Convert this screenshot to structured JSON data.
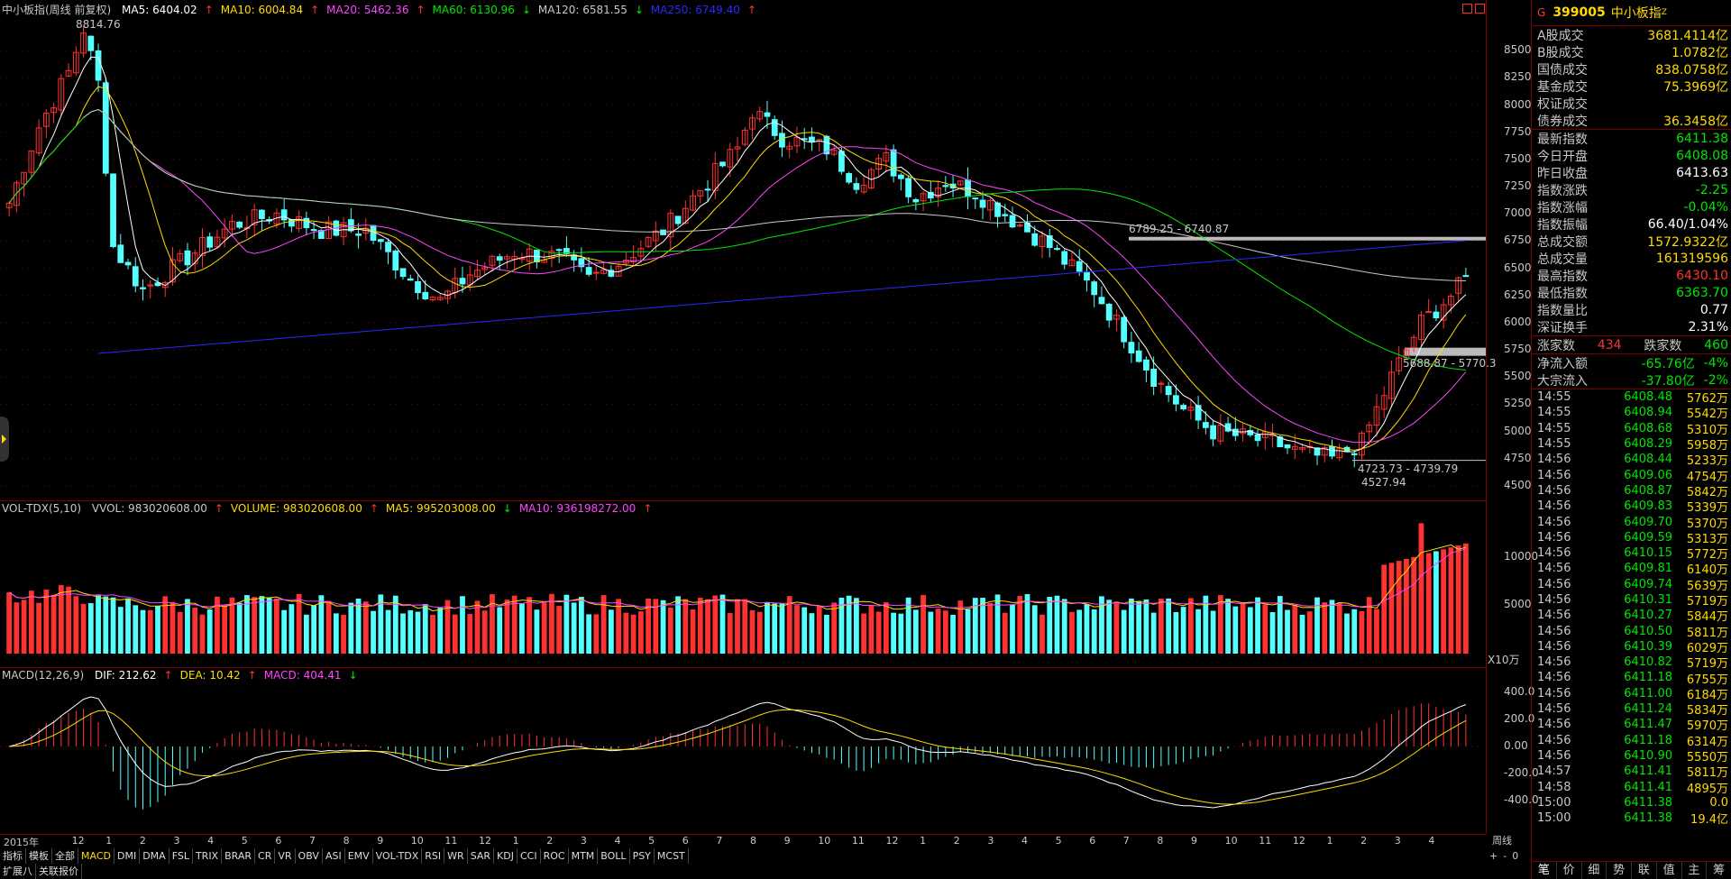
{
  "main": {
    "title": "中小板指(周线 前复权)",
    "ma": [
      {
        "label": "MA5: 6404.02",
        "arrow": "↑",
        "color": "#ffffff"
      },
      {
        "label": "MA10: 6004.84",
        "arrow": "↑",
        "color": "#ffdb00"
      },
      {
        "label": "MA20: 5462.36",
        "arrow": "↑",
        "color": "#ff44ff"
      },
      {
        "label": "MA60: 6130.96",
        "arrow": "↓",
        "color": "#00e600"
      },
      {
        "label": "MA120: 6581.55",
        "arrow": "↓",
        "color": "#c8c8c8"
      },
      {
        "label": "MA250: 6749.40",
        "arrow": "↑",
        "color": "#2828ff"
      }
    ],
    "y_ticks": [
      "8500",
      "8250",
      "8000",
      "7750",
      "7500",
      "7250",
      "7000",
      "6750",
      "6500",
      "6250",
      "6000",
      "5750",
      "5500",
      "5250",
      "5000",
      "4750",
      "4500"
    ],
    "annotations": {
      "peak": "8814.76",
      "range_high": "6789.25 - 6740.87",
      "range_mid": "5688.87 - 5770.3",
      "range_low": "4723.73 - 4739.79",
      "trough": "4527.94"
    }
  },
  "volume": {
    "title": "VOL-TDX(5,10)",
    "items": [
      {
        "label": "VVOL: 983020608.00",
        "arrow": "↑",
        "color": "#c8c8c8"
      },
      {
        "label": "VOLUME: 983020608.00",
        "arrow": "↑",
        "color": "#ffdb00"
      },
      {
        "label": "MA5: 995203008.00",
        "arrow": "↓",
        "color": "#ffdb00"
      },
      {
        "label": "MA10: 936198272.00",
        "arrow": "↑",
        "color": "#ff44ff"
      }
    ],
    "y_ticks": [
      "10000",
      "5000"
    ],
    "unit": "X10万"
  },
  "macd": {
    "title": "MACD(12,26,9)",
    "items": [
      {
        "label": "DIF: 212.62",
        "arrow": "↑",
        "color": "#ffffff"
      },
      {
        "label": "DEA: 10.42",
        "arrow": "↑",
        "color": "#ffdb00"
      },
      {
        "label": "MACD: 404.41",
        "arrow": "↓",
        "color": "#ff44ff"
      }
    ],
    "y_ticks": [
      "400.0",
      "200.0",
      "0.00",
      "-200.0",
      "-400.0"
    ]
  },
  "x_axis": {
    "labels": [
      "2015年",
      "12",
      "1",
      "2",
      "3",
      "4",
      "5",
      "6",
      "7",
      "8",
      "9",
      "10",
      "11",
      "12",
      "1",
      "2",
      "3",
      "4",
      "5",
      "6",
      "7",
      "8",
      "9",
      "10",
      "11",
      "12",
      "1",
      "2",
      "3",
      "4",
      "5",
      "6",
      "7",
      "8",
      "9",
      "10",
      "11",
      "12",
      "1",
      "2",
      "3",
      "4"
    ],
    "period": "周线"
  },
  "toolbar": {
    "row1": [
      "指标",
      "模板",
      "全部",
      "MACD",
      "DMI",
      "DMA",
      "FSL",
      "TRIX",
      "BRAR",
      "CR",
      "VR",
      "OBV",
      "ASI",
      "EMV",
      "VOL-TDX",
      "RSI",
      "WR",
      "SAR",
      "KDJ",
      "CCI",
      "ROC",
      "MTM",
      "BOLL",
      "PSY",
      "MCST"
    ],
    "active": "MACD",
    "row2": [
      "扩展八",
      "关联报价"
    ],
    "mini": [
      "+",
      "-",
      "0"
    ]
  },
  "side": {
    "badge": "G",
    "code": "399005",
    "name": "中小板指",
    "sup": "Z",
    "turnover": [
      {
        "k": "A股成交",
        "v": "3681.4114亿",
        "c": "yellow"
      },
      {
        "k": "B股成交",
        "v": "1.0782亿",
        "c": "yellow"
      },
      {
        "k": "国债成交",
        "v": "838.0758亿",
        "c": "yellow"
      },
      {
        "k": "基金成交",
        "v": "75.3969亿",
        "c": "yellow"
      },
      {
        "k": "权证成交",
        "v": "",
        "c": "yellow"
      },
      {
        "k": "债券成交",
        "v": "36.3458亿",
        "c": "yellow"
      }
    ],
    "stats": [
      {
        "k": "最新指数",
        "v": "6411.38",
        "c": "green"
      },
      {
        "k": "今日开盘",
        "v": "6408.08",
        "c": "green"
      },
      {
        "k": "昨日收盘",
        "v": "6413.63",
        "c": "white"
      },
      {
        "k": "指数涨跌",
        "v": "-2.25",
        "c": "green"
      },
      {
        "k": "指数涨幅",
        "v": "-0.04%",
        "c": "green"
      },
      {
        "k": "指数振幅",
        "v": "66.40/1.04%",
        "c": "white"
      },
      {
        "k": "总成交额",
        "v": "1572.9322亿",
        "c": "yellow"
      },
      {
        "k": "总成交量",
        "v": "161319596",
        "c": "yellow"
      },
      {
        "k": "最高指数",
        "v": "6430.10",
        "c": "red"
      },
      {
        "k": "最低指数",
        "v": "6363.70",
        "c": "green"
      },
      {
        "k": "指数量比",
        "v": "0.77",
        "c": "white"
      },
      {
        "k": "深证换手",
        "v": "2.31%",
        "c": "white"
      }
    ],
    "breadth": {
      "up_label": "涨家数",
      "up": "434",
      "down_label": "跌家数",
      "down": "460"
    },
    "flows": [
      {
        "k": "净流入额",
        "v": "-65.76亿",
        "p": "-4%"
      },
      {
        "k": "大宗流入",
        "v": "-37.80亿",
        "p": "-2%"
      }
    ],
    "ticks": [
      {
        "t": "14:55",
        "p": "6408.48",
        "v": "5762万"
      },
      {
        "t": "14:55",
        "p": "6408.94",
        "v": "5542万"
      },
      {
        "t": "14:55",
        "p": "6408.68",
        "v": "5310万"
      },
      {
        "t": "14:55",
        "p": "6408.29",
        "v": "5958万"
      },
      {
        "t": "14:56",
        "p": "6408.44",
        "v": "5233万"
      },
      {
        "t": "14:56",
        "p": "6409.06",
        "v": "4754万"
      },
      {
        "t": "14:56",
        "p": "6408.87",
        "v": "5842万"
      },
      {
        "t": "14:56",
        "p": "6409.83",
        "v": "5339万"
      },
      {
        "t": "14:56",
        "p": "6409.70",
        "v": "5370万"
      },
      {
        "t": "14:56",
        "p": "6409.59",
        "v": "5313万"
      },
      {
        "t": "14:56",
        "p": "6410.15",
        "v": "5772万"
      },
      {
        "t": "14:56",
        "p": "6409.81",
        "v": "6140万"
      },
      {
        "t": "14:56",
        "p": "6409.74",
        "v": "5639万"
      },
      {
        "t": "14:56",
        "p": "6410.31",
        "v": "5719万"
      },
      {
        "t": "14:56",
        "p": "6410.27",
        "v": "5844万"
      },
      {
        "t": "14:56",
        "p": "6410.50",
        "v": "5811万"
      },
      {
        "t": "14:56",
        "p": "6410.39",
        "v": "6029万"
      },
      {
        "t": "14:56",
        "p": "6410.82",
        "v": "5719万"
      },
      {
        "t": "14:56",
        "p": "6411.18",
        "v": "6755万"
      },
      {
        "t": "14:56",
        "p": "6411.00",
        "v": "6184万"
      },
      {
        "t": "14:56",
        "p": "6411.24",
        "v": "5834万"
      },
      {
        "t": "14:56",
        "p": "6411.47",
        "v": "5970万"
      },
      {
        "t": "14:56",
        "p": "6411.18",
        "v": "6314万"
      },
      {
        "t": "14:56",
        "p": "6410.90",
        "v": "5550万"
      },
      {
        "t": "14:57",
        "p": "6411.41",
        "v": "5811万"
      },
      {
        "t": "14:58",
        "p": "6411.41",
        "v": "4895万"
      },
      {
        "t": "15:00",
        "p": "6411.38",
        "v": "0.0"
      },
      {
        "t": "15:00",
        "p": "6411.38",
        "v": "19.4亿"
      }
    ],
    "tabs": [
      "笔",
      "价",
      "细",
      "势",
      "联",
      "值",
      "主",
      "筹"
    ]
  },
  "chart_data": {
    "type": "candlestick",
    "title": "中小板指(周线 前复权)",
    "y_range": [
      4450,
      8800
    ],
    "y_ticks": [
      4500,
      4750,
      5000,
      5250,
      5500,
      5750,
      6000,
      6250,
      6500,
      6750,
      7000,
      7250,
      7500,
      7750,
      8000,
      8250,
      8500
    ],
    "legend": [
      "MA5: 6404.02",
      "MA10: 6004.84",
      "MA20: 5462.36",
      "MA60: 6130.96",
      "MA120: 6581.55",
      "MA250: 6749.40"
    ],
    "labeled_extremes": {
      "high": 8814.76,
      "low": 4527.94
    },
    "last_close": 6411.38,
    "volume_ticks": [
      5000,
      10000
    ],
    "macd_ticks": [
      -400,
      -200,
      0,
      200,
      400
    ]
  }
}
